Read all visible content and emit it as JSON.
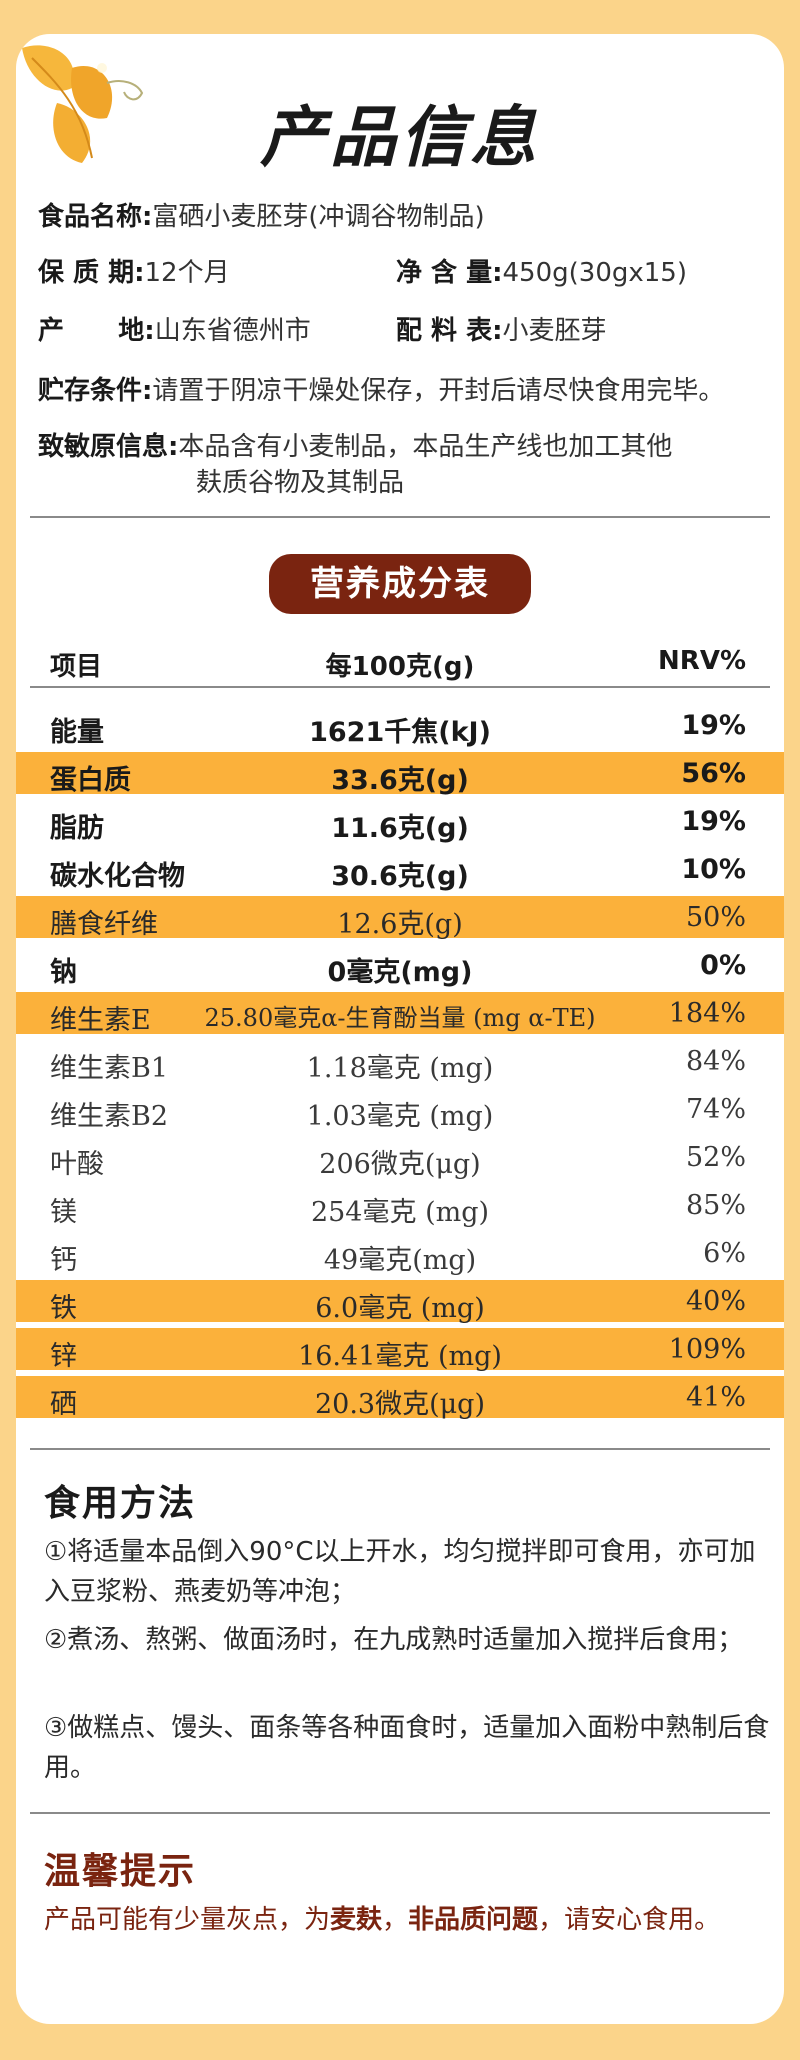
{
  "title": "产品信息",
  "info": {
    "name_k": "食品名称:",
    "name_v": "富硒小麦胚芽(冲调谷物制品)",
    "shelf_k": "保 质 期:",
    "shelf_v": "12个月",
    "net_k": "净 含 量:",
    "net_v": "450g(30gx15)",
    "origin_k": "产      地:",
    "origin_v": "山东省德州市",
    "ingr_k": "配 料 表:",
    "ingr_v": "小麦胚芽",
    "storage_k": "贮存条件:",
    "storage_v": "请置于阴凉干燥处保存，开封后请尽快食用完毕。",
    "allergen_k": "致敏原信息:",
    "allergen_v1": "本品含有小麦制品，本品生产线也加工其他",
    "allergen_v2": "麸质谷物及其制品"
  },
  "nutrition": {
    "heading": "营养成分表",
    "col_item": "项目",
    "col_per": "每100克(g)",
    "col_nrv": "NRV%",
    "rows": [
      {
        "item": "能量",
        "per": "1621千焦(kJ)",
        "nrv": "19%"
      },
      {
        "item": "蛋白质",
        "per": "33.6克(g)",
        "nrv": "56%"
      },
      {
        "item": "脂肪",
        "per": "11.6克(g)",
        "nrv": "19%"
      },
      {
        "item": "碳水化合物",
        "per": "30.6克(g)",
        "nrv": "10%"
      },
      {
        "item": "膳食纤维",
        "per": "12.6克(g)",
        "nrv": "50%"
      },
      {
        "item": "钠",
        "per": "0毫克(mg)",
        "nrv": "0%"
      },
      {
        "item": "维生素E",
        "per": "25.80毫克α-生育酚当量 (mg α-TE)",
        "nrv": "184%"
      },
      {
        "item": "维生素B1",
        "per": "1.18毫克 (mg)",
        "nrv": "84%"
      },
      {
        "item": "维生素B2",
        "per": "1.03毫克 (mg)",
        "nrv": "74%"
      },
      {
        "item": "叶酸",
        "per": "206微克(μg)",
        "nrv": "52%"
      },
      {
        "item": "镁",
        "per": "254毫克 (mg)",
        "nrv": "85%"
      },
      {
        "item": "钙",
        "per": "49毫克(mg)",
        "nrv": "6%"
      },
      {
        "item": "铁",
        "per": "6.0毫克 (mg)",
        "nrv": "40%"
      },
      {
        "item": "锌",
        "per": "16.41毫克 (mg)",
        "nrv": "109%"
      },
      {
        "item": "硒",
        "per": "20.3微克(μg)",
        "nrv": "41%"
      }
    ]
  },
  "usage": {
    "heading": "食用方法",
    "p1": "①将适量本品倒入90°C以上开水，均匀搅拌即可食用，亦可加入豆浆粉、燕麦奶等冲泡；",
    "p2": "②煮汤、熬粥、做面汤时，在九成熟时适量加入搅拌后食用；",
    "p3": "③做糕点、馒头、面条等各种面食时，适量加入面粉中熟制后食用。"
  },
  "tips": {
    "heading": "温馨提示",
    "t1": "产品可能有少量灰点，为",
    "t2": "麦麸",
    "t3": "，",
    "t4": "非品质问题",
    "t5": "，请安心食用。"
  },
  "colors": {
    "accent": "#fbb13b",
    "brand": "#7a2410",
    "background": "#fbd48a"
  }
}
